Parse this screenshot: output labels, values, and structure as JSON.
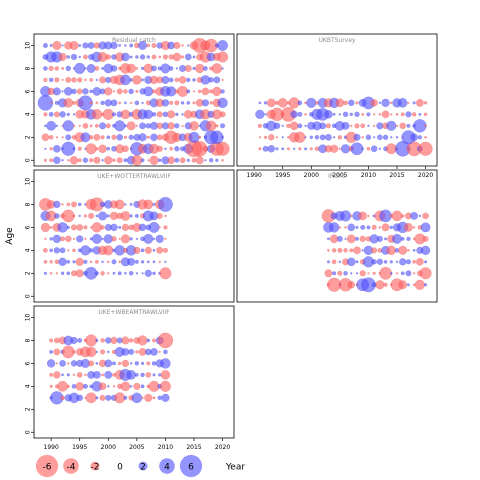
{
  "chart_data": {
    "type": "scatter",
    "subtype": "bubble-residuals",
    "ylabel": "Age",
    "xlabel": "Year",
    "xlim": [
      1987,
      2022
    ],
    "ylim": [
      -0.5,
      11
    ],
    "x_ticks": [
      1990,
      1995,
      2000,
      2005,
      2010,
      2015,
      2020
    ],
    "y_ticks": [
      0,
      2,
      4,
      6,
      8,
      10
    ],
    "colors": {
      "positive": "#4d4dff",
      "negative": "#ff5c5c"
    },
    "legend": {
      "placement": "bottom",
      "values": [
        -6,
        -4,
        -2,
        0,
        2,
        4,
        6
      ],
      "labels": [
        "-6",
        "-4",
        "-2",
        "0",
        "2",
        "4",
        "6"
      ]
    },
    "panels": [
      {
        "title": "Residual catch",
        "years": [
          1989,
          2020
        ],
        "ages": [
          0,
          10
        ],
        "seed": 11,
        "emph": [
          {
            "year": 2016,
            "age": 10,
            "value": -3.6
          },
          {
            "year": 2018,
            "age": 10,
            "value": -3.2
          },
          {
            "year": 1989,
            "age": 5,
            "value": 3.8
          },
          {
            "year": 1996,
            "age": 5,
            "value": 3.6
          },
          {
            "year": 2015,
            "age": 1,
            "value": -4.2
          },
          {
            "year": 2016,
            "age": 1,
            "value": -3.8
          },
          {
            "year": 2019,
            "age": 1,
            "value": -3.4
          },
          {
            "year": 2020,
            "age": 1,
            "value": -3.4
          },
          {
            "year": 2011,
            "age": 2,
            "value": -3.2
          },
          {
            "year": 2018,
            "age": 2,
            "value": 3.4
          },
          {
            "year": 2019,
            "age": 2,
            "value": 3.2
          },
          {
            "year": 1993,
            "age": 1,
            "value": 3.4
          },
          {
            "year": 2005,
            "age": 1,
            "value": 3.2
          }
        ]
      },
      {
        "title": "UKBTSurvey",
        "years": [
          1991,
          2020
        ],
        "ages": [
          1,
          5
        ],
        "seed": 23,
        "emph": [
          {
            "year": 1996,
            "age": 4,
            "value": -3.6
          },
          {
            "year": 1994,
            "age": 4,
            "value": -3.2
          },
          {
            "year": 2016,
            "age": 1,
            "value": 3.8
          },
          {
            "year": 2018,
            "age": 1,
            "value": -3.6
          },
          {
            "year": 2020,
            "age": 1,
            "value": -3.4
          },
          {
            "year": 2017,
            "age": 2,
            "value": 3.4
          },
          {
            "year": 2008,
            "age": 1,
            "value": 3.0
          },
          {
            "year": 2010,
            "age": 5,
            "value": 3.0
          },
          {
            "year": 2002,
            "age": 4,
            "value": 3.0
          },
          {
            "year": 2019,
            "age": 3,
            "value": 3.2
          }
        ]
      },
      {
        "title": "UKE+WOTTERTRAWLVIIF",
        "years": [
          1989,
          2010
        ],
        "ages": [
          2,
          8
        ],
        "seed": 37,
        "emph": [
          {
            "year": 1989,
            "age": 8,
            "value": -3.0
          },
          {
            "year": 1998,
            "age": 8,
            "value": -3.4
          },
          {
            "year": 2010,
            "age": 8,
            "value": 3.6
          },
          {
            "year": 2010,
            "age": 2,
            "value": -2.8
          },
          {
            "year": 1993,
            "age": 7,
            "value": -3.0
          },
          {
            "year": 1997,
            "age": 2,
            "value": 3.0
          }
        ]
      },
      {
        "title": "IRGFS",
        "years": [
          2003,
          2020
        ],
        "ages": [
          1,
          7
        ],
        "seed": 53,
        "emph": [
          {
            "year": 2004,
            "age": 1,
            "value": -3.4
          },
          {
            "year": 2006,
            "age": 1,
            "value": -3.2
          },
          {
            "year": 2003,
            "age": 7,
            "value": -3.2
          },
          {
            "year": 2010,
            "age": 1,
            "value": 3.6
          },
          {
            "year": 2013,
            "age": 2,
            "value": -3.0
          },
          {
            "year": 2015,
            "age": 1,
            "value": -3.0
          },
          {
            "year": 2020,
            "age": 2,
            "value": -2.8
          },
          {
            "year": 2013,
            "age": 7,
            "value": 3.0
          },
          {
            "year": 2009,
            "age": 1,
            "value": 3.0
          }
        ]
      },
      {
        "title": "UKE+WBEAMTRAWLVIIF",
        "years": [
          1990,
          2010
        ],
        "ages": [
          3,
          8
        ],
        "seed": 71,
        "emph": [
          {
            "year": 2010,
            "age": 8,
            "value": -3.8
          },
          {
            "year": 1991,
            "age": 3,
            "value": 3.2
          },
          {
            "year": 1993,
            "age": 7,
            "value": -3.0
          },
          {
            "year": 1997,
            "age": 8,
            "value": -2.8
          },
          {
            "year": 2003,
            "age": 5,
            "value": 2.8
          }
        ]
      }
    ]
  }
}
